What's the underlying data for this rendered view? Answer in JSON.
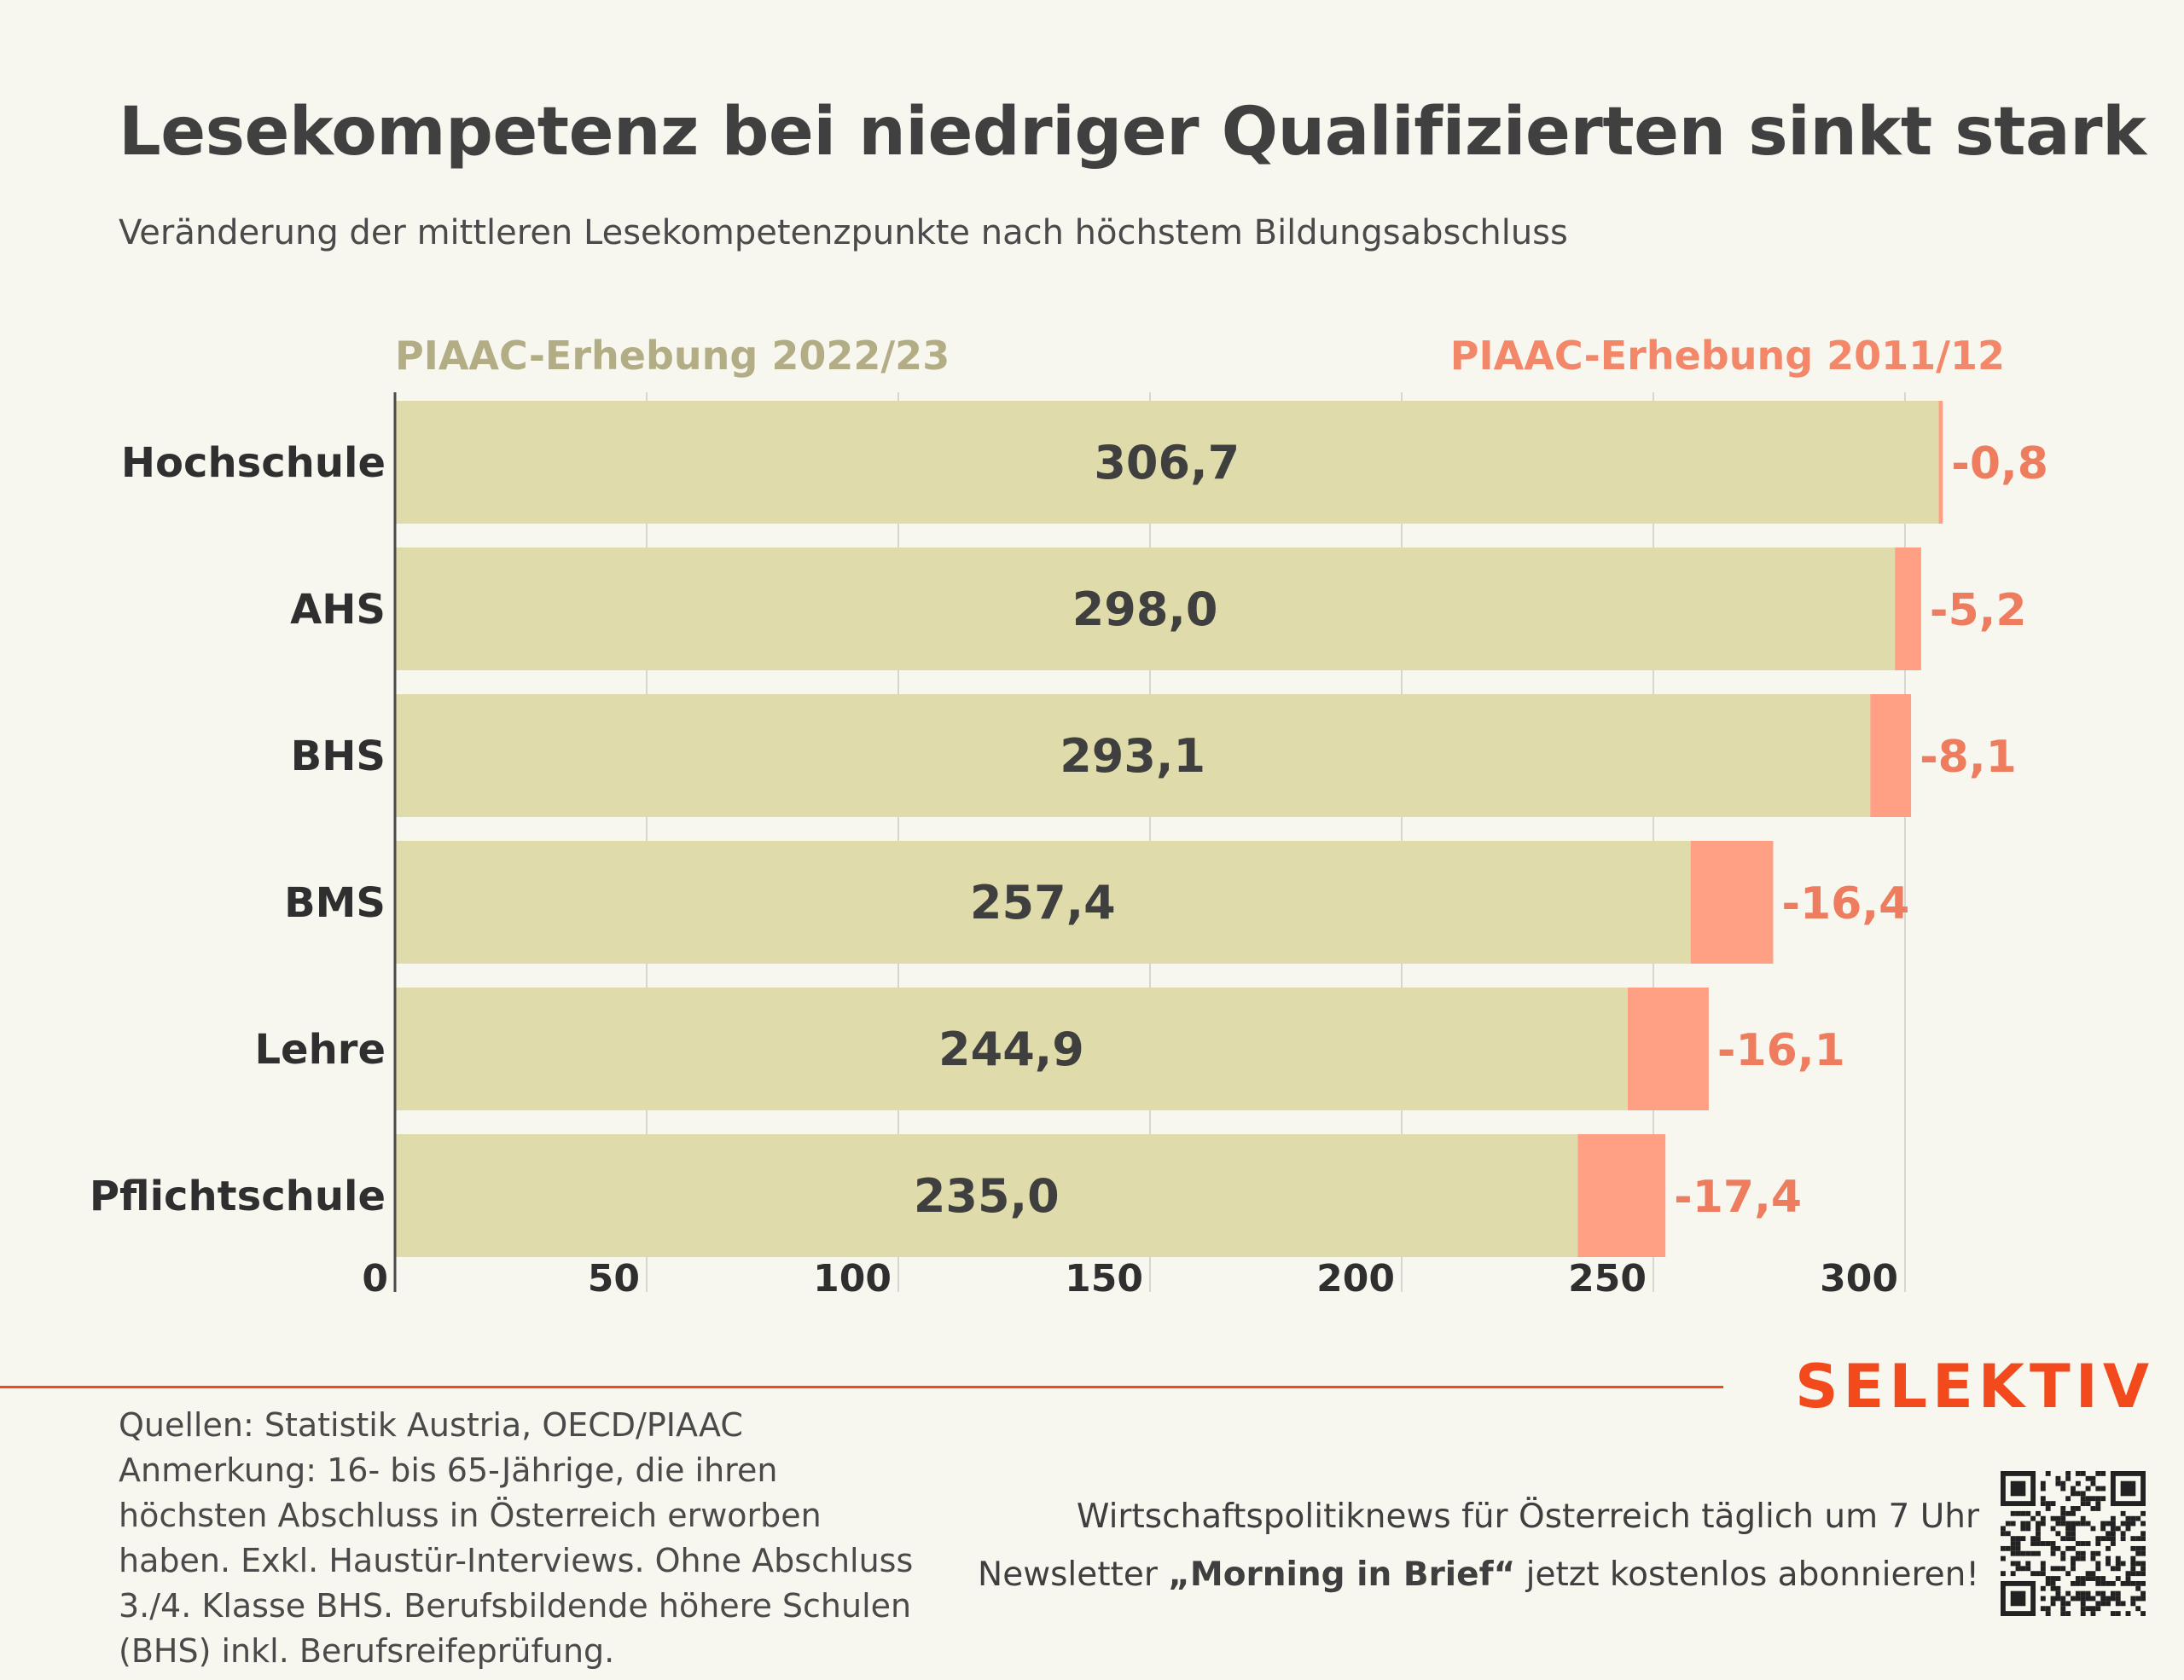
{
  "header": {
    "title": "Lesekompetenz bei niedriger Qualifizierten sinkt stark",
    "subtitle": "Veränderung der mittleren Lesekompetenzpunkte nach höchstem Bildungsabschluss"
  },
  "legend": {
    "new": "PIAAC-Erhebung 2022/23",
    "old": "PIAAC-Erhebung 2011/12"
  },
  "colors": {
    "bar_new": "#dfdbab",
    "bar_change": "#ff9f83",
    "legend_new": "#b3ad85",
    "legend_old": "#f2876a",
    "change_label": "#ee7d5f",
    "value_label": "#3f3f3f",
    "brand": "#f24a1c"
  },
  "chart_data": {
    "type": "bar",
    "orientation": "horizontal",
    "categories": [
      "Hochschule",
      "AHS",
      "BHS",
      "BMS",
      "Lehre",
      "Pflichtschule"
    ],
    "series": [
      {
        "name": "PIAAC-Erhebung 2022/23",
        "values": [
          306.7,
          298.0,
          293.1,
          257.4,
          244.9,
          235.0
        ]
      }
    ],
    "value_labels": [
      "306,7",
      "298,0",
      "293,1",
      "257,4",
      "244,9",
      "235,0"
    ],
    "changes": [
      -0.8,
      -5.2,
      -8.1,
      -16.4,
      -16.1,
      -17.4
    ],
    "change_labels": [
      "-0,8",
      "-5,2",
      "-8,1",
      "-16,4",
      "-16,1",
      "-17,4"
    ],
    "xlim": [
      0,
      300
    ],
    "xticks": [
      0,
      50,
      100,
      150,
      200,
      250,
      300
    ],
    "grid": true,
    "legend_position": "top"
  },
  "footer": {
    "brand": "SELEKTIV",
    "notes": [
      "Quellen: Statistik Austria, OECD/PIAAC",
      "Anmerkung: 16- bis 65-Jährige, die ihren",
      "höchsten Abschluss in Österreich erworben",
      "haben. Exkl. Haustür-Interviews. Ohne Abschluss",
      "3./4. Klasse BHS. Berufsbildende höhere Schulen",
      "(BHS) inkl. Berufsreifeprüfung."
    ],
    "promo_line1": "Wirtschaftspolitiknews für Österreich täglich um 7 Uhr",
    "promo_line2_pre": "Newsletter ",
    "promo_line2_bold": "„Morning in Brief“",
    "promo_line2_post": " jetzt kostenlos abonnieren!"
  }
}
